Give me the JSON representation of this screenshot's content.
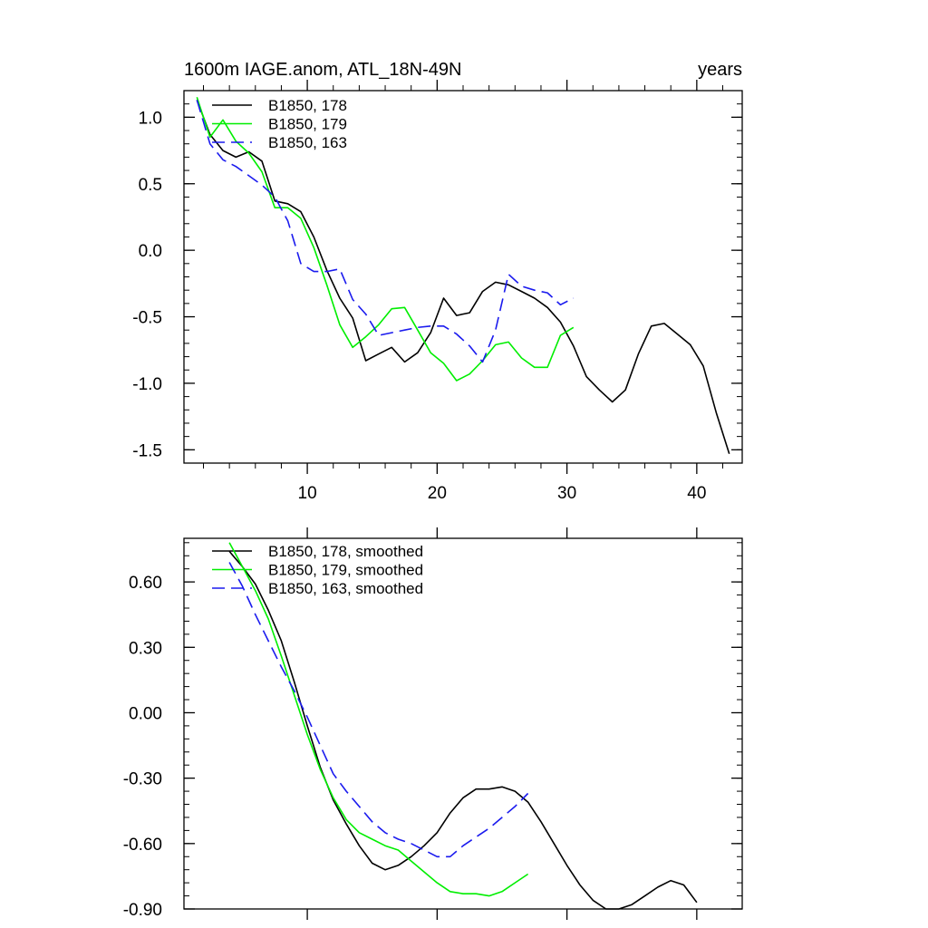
{
  "chart_data": [
    {
      "type": "line",
      "title": "1600m IAGE.anom, ATL_18N-49N",
      "units_label": "years",
      "xlim": [
        0.5,
        43.5
      ],
      "ylim": [
        -1.6,
        1.2
      ],
      "x_ticks": [
        10,
        20,
        30,
        40
      ],
      "x_tick_labels": [
        "10",
        "20",
        "30",
        "40"
      ],
      "y_ticks": [
        1.0,
        0.5,
        0.0,
        -0.5,
        -1.0,
        -1.5
      ],
      "y_tick_labels": [
        "1.0",
        "0.5",
        "0.0",
        "-0.5",
        "-1.0",
        "-1.5"
      ],
      "legend_position": "top-left",
      "series": [
        {
          "name": "B1850, 178",
          "color": "#000000",
          "dash": "solid",
          "x": [
            1.5,
            2.5,
            3.5,
            4.5,
            5.5,
            6.5,
            7.5,
            8.5,
            9.5,
            10.5,
            11.5,
            12.5,
            13.5,
            14.5,
            15.5,
            16.5,
            17.5,
            18.5,
            19.5,
            20.5,
            21.5,
            22.5,
            23.5,
            24.5,
            25.5,
            26.5,
            27.5,
            28.5,
            29.5,
            30.5,
            31.5,
            32.5,
            33.5,
            34.5,
            35.5,
            36.5,
            37.5,
            38.5,
            39.5,
            40.5,
            41.5,
            42.5
          ],
          "values": [
            1.13,
            0.87,
            0.75,
            0.7,
            0.74,
            0.67,
            0.37,
            0.35,
            0.29,
            0.1,
            -0.15,
            -0.36,
            -0.51,
            -0.83,
            -0.78,
            -0.73,
            -0.84,
            -0.77,
            -0.62,
            -0.36,
            -0.49,
            -0.47,
            -0.31,
            -0.24,
            -0.26,
            -0.31,
            -0.36,
            -0.43,
            -0.54,
            -0.72,
            -0.95,
            -1.05,
            -1.14,
            -1.05,
            -0.78,
            -0.57,
            -0.55,
            -0.63,
            -0.71,
            -0.87,
            -1.22,
            -1.53
          ]
        },
        {
          "name": "B1850, 179",
          "color": "#00ee00",
          "dash": "solid",
          "x": [
            1.5,
            2.5,
            3.5,
            4.5,
            5.5,
            6.5,
            7.5,
            8.5,
            9.5,
            10.5,
            11.5,
            12.5,
            13.5,
            14.5,
            15.5,
            16.5,
            17.5,
            18.5,
            19.5,
            20.5,
            21.5,
            22.5,
            23.5,
            24.5,
            25.5,
            26.5,
            27.5,
            28.5,
            29.5,
            30.5
          ],
          "values": [
            1.15,
            0.85,
            0.98,
            0.82,
            0.73,
            0.59,
            0.32,
            0.32,
            0.24,
            0.02,
            -0.26,
            -0.56,
            -0.73,
            -0.65,
            -0.56,
            -0.44,
            -0.43,
            -0.6,
            -0.77,
            -0.85,
            -0.98,
            -0.93,
            -0.83,
            -0.71,
            -0.69,
            -0.81,
            -0.88,
            -0.88,
            -0.64,
            -0.58
          ]
        },
        {
          "name": "B1850, 163",
          "color": "#1a1aee",
          "dash": "dashed",
          "x": [
            1.5,
            2.5,
            3.5,
            4.5,
            5.5,
            6.5,
            7.5,
            8.5,
            9.5,
            10.5,
            11.5,
            12.5,
            13.5,
            14.5,
            15.5,
            16.5,
            17.5,
            18.5,
            19.5,
            20.5,
            21.5,
            22.5,
            23.5,
            24.5,
            25.5,
            26.5,
            27.5,
            28.5,
            29.5,
            30.5
          ],
          "values": [
            1.13,
            0.8,
            0.68,
            0.63,
            0.56,
            0.49,
            0.4,
            0.22,
            -0.1,
            -0.16,
            -0.16,
            -0.14,
            -0.37,
            -0.48,
            -0.64,
            -0.62,
            -0.6,
            -0.58,
            -0.57,
            -0.57,
            -0.63,
            -0.72,
            -0.84,
            -0.6,
            -0.18,
            -0.27,
            -0.3,
            -0.32,
            -0.41,
            -0.36
          ]
        }
      ]
    },
    {
      "type": "line",
      "title": "",
      "xlim": [
        0.5,
        43.5
      ],
      "ylim": [
        -0.9,
        0.8
      ],
      "x_ticks": [
        10,
        20,
        30,
        40
      ],
      "x_tick_labels": [],
      "y_ticks": [
        0.6,
        0.3,
        0.0,
        -0.3,
        -0.6,
        -0.9
      ],
      "y_tick_labels": [
        "0.60",
        "0.30",
        "0.00",
        "-0.30",
        "-0.60",
        "-0.90"
      ],
      "legend_position": "top-left",
      "series": [
        {
          "name": "B1850, 178, smoothed",
          "color": "#000000",
          "dash": "solid",
          "x": [
            4,
            5,
            6,
            7,
            8,
            9,
            10,
            11,
            12,
            13,
            14,
            15,
            16,
            17,
            18,
            19,
            20,
            21,
            22,
            23,
            24,
            25,
            26,
            27,
            28,
            29,
            30,
            31,
            32,
            33,
            34,
            35,
            36,
            37,
            38,
            39,
            40
          ],
          "values": [
            0.74,
            0.67,
            0.59,
            0.47,
            0.33,
            0.14,
            -0.06,
            -0.25,
            -0.4,
            -0.51,
            -0.61,
            -0.69,
            -0.72,
            -0.7,
            -0.66,
            -0.61,
            -0.55,
            -0.46,
            -0.39,
            -0.35,
            -0.35,
            -0.34,
            -0.36,
            -0.41,
            -0.5,
            -0.6,
            -0.7,
            -0.79,
            -0.86,
            -0.9,
            -0.9,
            -0.88,
            -0.84,
            -0.8,
            -0.77,
            -0.79,
            -0.87
          ]
        },
        {
          "name": "B1850, 179, smoothed",
          "color": "#00ee00",
          "dash": "solid",
          "x": [
            4,
            5,
            6,
            7,
            8,
            9,
            10,
            11,
            12,
            13,
            14,
            15,
            16,
            17,
            18,
            19,
            20,
            21,
            22,
            23,
            24,
            25,
            26,
            27
          ],
          "values": [
            0.78,
            0.67,
            0.56,
            0.43,
            0.26,
            0.08,
            -0.1,
            -0.26,
            -0.39,
            -0.49,
            -0.55,
            -0.58,
            -0.61,
            -0.63,
            -0.68,
            -0.73,
            -0.78,
            -0.82,
            -0.83,
            -0.83,
            -0.84,
            -0.82,
            -0.78,
            -0.74
          ]
        },
        {
          "name": "B1850, 163, smoothed",
          "color": "#1a1aee",
          "dash": "dashed",
          "x": [
            4,
            5,
            6,
            7,
            8,
            9,
            10,
            11,
            12,
            13,
            14,
            15,
            16,
            17,
            18,
            19,
            20,
            21,
            22,
            23,
            24,
            25,
            26,
            27
          ],
          "values": [
            0.69,
            0.58,
            0.45,
            0.33,
            0.21,
            0.1,
            -0.02,
            -0.15,
            -0.28,
            -0.36,
            -0.43,
            -0.5,
            -0.55,
            -0.58,
            -0.6,
            -0.63,
            -0.66,
            -0.66,
            -0.61,
            -0.57,
            -0.53,
            -0.48,
            -0.43,
            -0.37
          ]
        }
      ]
    }
  ]
}
